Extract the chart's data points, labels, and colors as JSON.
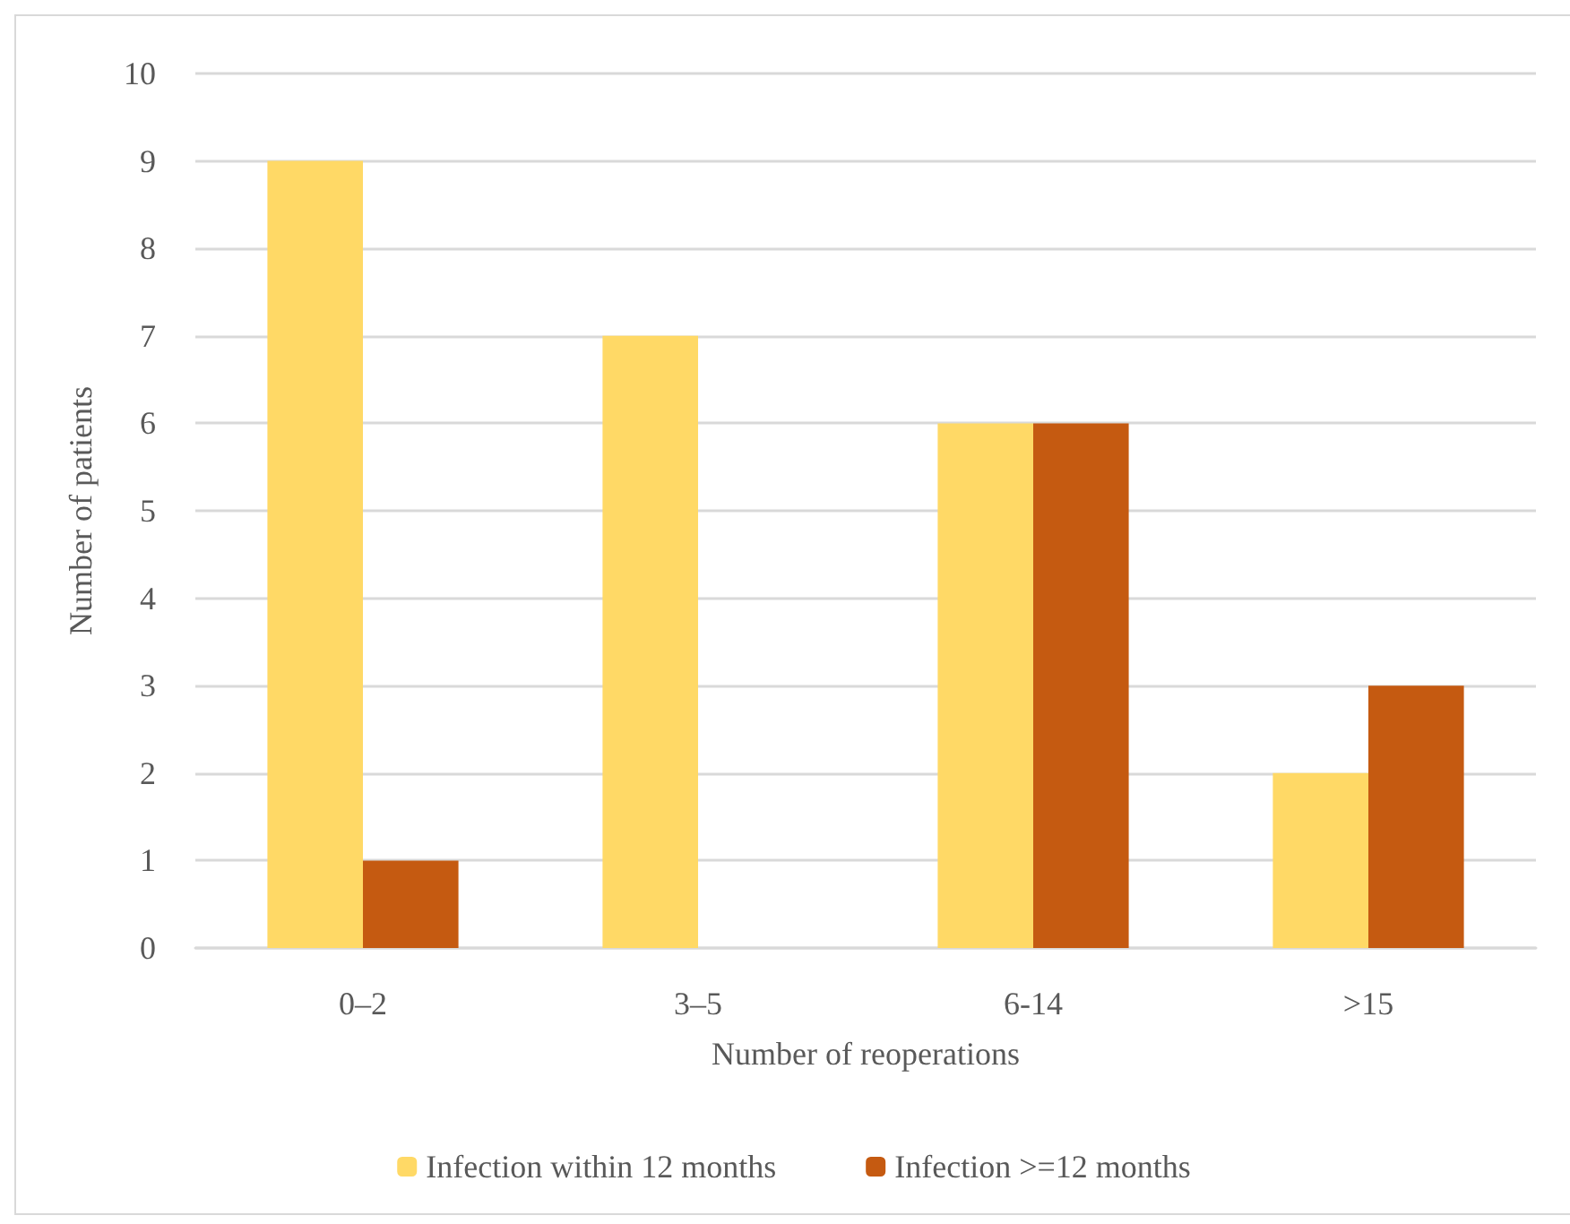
{
  "chart_data": {
    "type": "bar",
    "xlabel": "Number of reoperations",
    "ylabel": "Number of patients",
    "categories": [
      "0–2",
      "3–5",
      "6-14",
      ">15"
    ],
    "series": [
      {
        "name": "Infection within 12 months",
        "color": "#ffd966",
        "values": [
          9,
          7,
          6,
          2
        ]
      },
      {
        "name": "Infection >=12 months",
        "color": "#c55a11",
        "values": [
          1,
          0,
          6,
          3
        ]
      }
    ],
    "ylim": [
      0,
      10
    ],
    "yticks": [
      0,
      1,
      2,
      3,
      4,
      5,
      6,
      7,
      8,
      9,
      10
    ],
    "grid": "y",
    "legend": "bottom"
  }
}
